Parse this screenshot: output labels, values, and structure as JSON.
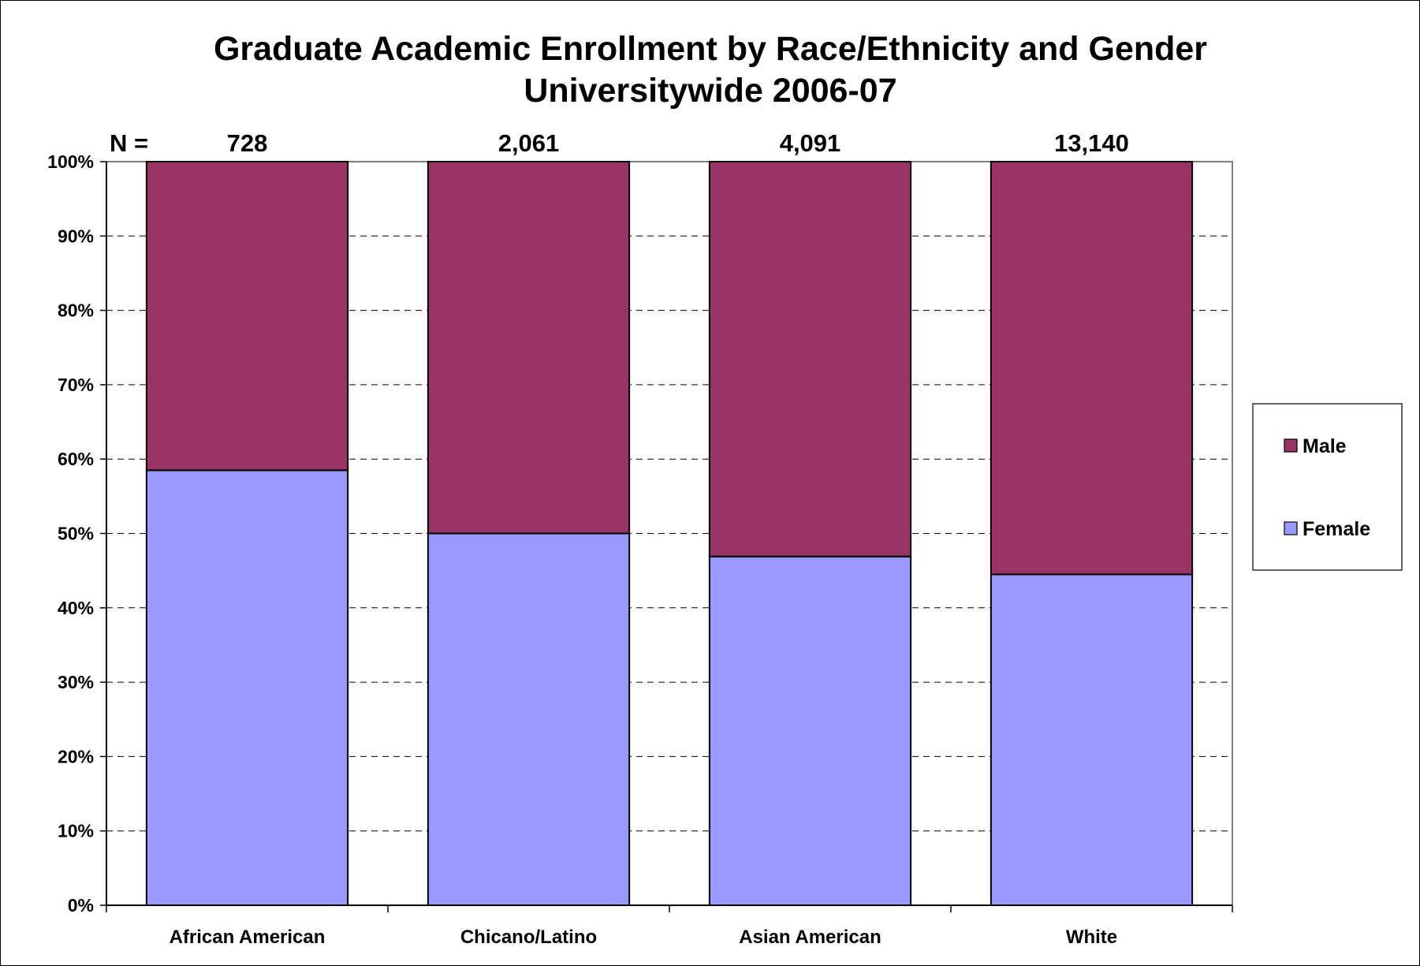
{
  "chart_data": {
    "type": "bar",
    "stacked": true,
    "percent_stacked": true,
    "title": "Graduate Academic Enrollment by Race/Ethnicity and Gender",
    "subtitle": "Universitywide 2006-07",
    "categories": [
      "African American",
      "Chicano/Latino",
      "Asian American",
      "White"
    ],
    "series": [
      {
        "name": "Female",
        "color": "#9999ff",
        "values": [
          58.5,
          50.0,
          46.9,
          44.5
        ]
      },
      {
        "name": "Male",
        "color": "#993366",
        "values": [
          41.5,
          50.0,
          53.1,
          55.5
        ]
      }
    ],
    "n_label": "N =",
    "n_values": [
      "728",
      "2,061",
      "4,091",
      "13,140"
    ],
    "ylim": [
      0,
      100
    ],
    "yticks": [
      "0%",
      "10%",
      "20%",
      "30%",
      "40%",
      "50%",
      "60%",
      "70%",
      "80%",
      "90%",
      "100%"
    ],
    "xlabel": "",
    "ylabel": "",
    "grid": "dashed horizontal",
    "legend": {
      "position": "right",
      "entries": [
        "Male",
        "Female"
      ]
    }
  }
}
